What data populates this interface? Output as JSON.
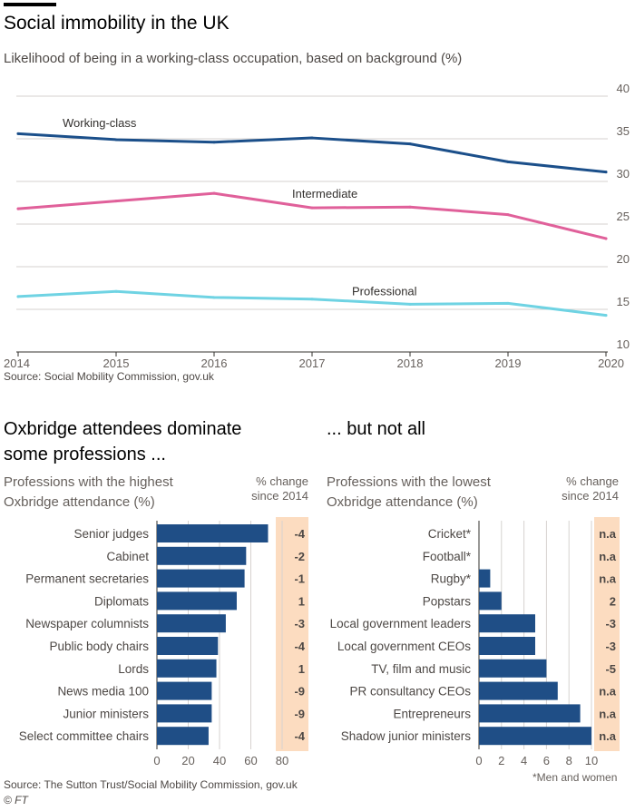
{
  "header": {
    "title": "Social immobility in the UK",
    "subtitle": "Likelihood of being in a working-class occupation, based on background (%)",
    "source1": "Source: Social Mobility Commission, gov.uk",
    "left_title": "Oxbridge attendees dominate some professions ...",
    "right_title": "... but not all",
    "left_subtitle": "Professions with the highest Oxbridge attendance (%)",
    "right_subtitle": "Professions with the lowest Oxbridge attendance (%)",
    "change_header": "% change since 2014",
    "footnote": "*Men and women",
    "source2": "Source: The Sutton Trust/Social Mobility Commission, gov.uk",
    "credit": "© FT"
  },
  "colors": {
    "working": "#1b4f8a",
    "intermediate": "#e0609a",
    "professional": "#6fd3e3",
    "bar": "#1f4e86",
    "change_bg": "#fcdcc0",
    "grid": "#d6d2cf",
    "axis": "#66605c"
  },
  "chart_data": [
    {
      "type": "line",
      "title": "Social immobility in the UK",
      "subtitle": "Likelihood of being in a working-class occupation, based on background (%)",
      "x": [
        "2014",
        "2015",
        "2016",
        "2017",
        "2018",
        "2019",
        "2020"
      ],
      "ylim": [
        10,
        40
      ],
      "yticks": [
        "10",
        "15",
        "20",
        "25",
        "30",
        "35",
        "40"
      ],
      "series": [
        {
          "name": "Working-class",
          "values": [
            35.6,
            34.9,
            34.6,
            35.1,
            34.4,
            32.3,
            31.1
          ]
        },
        {
          "name": "Intermediate",
          "values": [
            26.8,
            27.7,
            28.6,
            26.9,
            27.0,
            26.1,
            23.3
          ]
        },
        {
          "name": "Professional",
          "values": [
            16.5,
            17.1,
            16.4,
            16.2,
            15.6,
            15.7,
            14.3
          ]
        }
      ]
    },
    {
      "type": "bar",
      "title": "Professions with the highest Oxbridge attendance (%)",
      "categories": [
        "Senior judges",
        "Cabinet",
        "Permanent secretaries",
        "Diplomats",
        "Newspaper columnists",
        "Public body chairs",
        "Lords",
        "News media 100",
        "Junior ministers",
        "Select committee chairs"
      ],
      "values": [
        71,
        57,
        56,
        51,
        44,
        39,
        38,
        35,
        35,
        33
      ],
      "change": [
        "-4",
        "-2",
        "-1",
        "1",
        "-3",
        "-4",
        "1",
        "-9",
        "-9",
        "-4"
      ],
      "xlim": [
        0,
        80
      ],
      "xticks": [
        "0",
        "20",
        "40",
        "60",
        "80"
      ]
    },
    {
      "type": "bar",
      "title": "Professions with the lowest Oxbridge attendance (%)",
      "categories": [
        "Cricket*",
        "Football*",
        "Rugby*",
        "Popstars",
        "Local government leaders",
        "Local government CEOs",
        "TV, film and music",
        "PR consultancy CEOs",
        "Entrepreneurs",
        "Shadow junior ministers"
      ],
      "values": [
        0,
        0,
        1,
        2,
        5,
        5,
        6,
        7,
        9,
        10
      ],
      "change": [
        "n.a",
        "n.a",
        "n.a",
        "2",
        "-3",
        "-3",
        "-5",
        "n.a",
        "n.a",
        "n.a"
      ],
      "xlim": [
        0,
        10
      ],
      "xticks": [
        "0",
        "2",
        "4",
        "6",
        "8",
        "10"
      ]
    }
  ]
}
